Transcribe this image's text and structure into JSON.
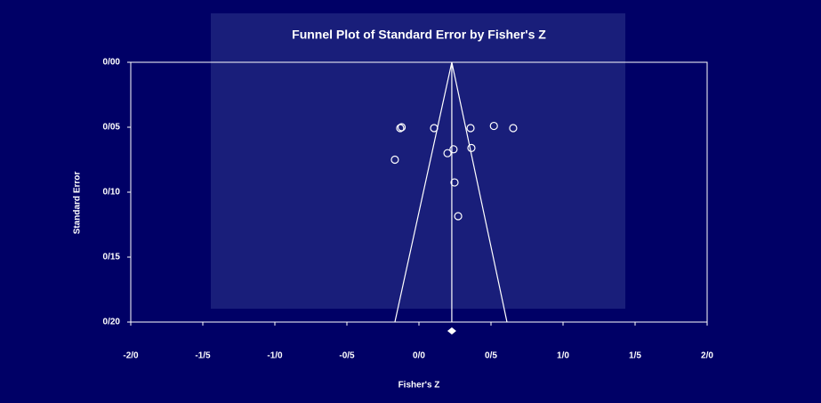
{
  "chart_data": {
    "type": "funnel",
    "title": "Funnel Plot of Standard Error by Fisher's Z",
    "xlabel": "Fisher's Z",
    "ylabel": "Standard Error",
    "xlim": [
      -2,
      2
    ],
    "xticks": [
      {
        "value": -2,
        "label": "-2/0"
      },
      {
        "value": -1.5,
        "label": "-1/5"
      },
      {
        "value": -1,
        "label": "-1/0"
      },
      {
        "value": -0.5,
        "label": "-0/5"
      },
      {
        "value": 0,
        "label": "0/0"
      },
      {
        "value": 0.5,
        "label": "0/5"
      },
      {
        "value": 1,
        "label": "1/0"
      },
      {
        "value": 1.5,
        "label": "1/5"
      },
      {
        "value": 2,
        "label": "2/0"
      }
    ],
    "ylim": [
      0,
      0.2
    ],
    "y_reversed": true,
    "yticks": [
      {
        "value": 0,
        "label": "0/00"
      },
      {
        "value": 0.05,
        "label": "0/05"
      },
      {
        "value": 0.1,
        "label": "0/10"
      },
      {
        "value": 0.15,
        "label": "0/15"
      },
      {
        "value": 0.2,
        "label": "0/20"
      }
    ],
    "color": "#ffffff",
    "series": [
      {
        "x": [
          -0.13,
          -0.12,
          0.105,
          0.358,
          0.52,
          0.654,
          0.24,
          0.364,
          0.198,
          -0.167,
          0.247,
          0.272
        ],
        "y": [
          0.0507,
          0.05,
          0.0507,
          0.0507,
          0.049,
          0.0507,
          0.067,
          0.066,
          0.07,
          0.075,
          0.0925,
          0.1185
        ]
      }
    ],
    "funnel": {
      "x": [
        -0.167,
        0.228,
        0.611
      ],
      "y": [
        0.2,
        0,
        0.2
      ]
    },
    "mean_line": {
      "x": [
        0.228,
        0.228
      ],
      "y": [
        0,
        0.2
      ]
    },
    "summary_x": 0.228
  }
}
